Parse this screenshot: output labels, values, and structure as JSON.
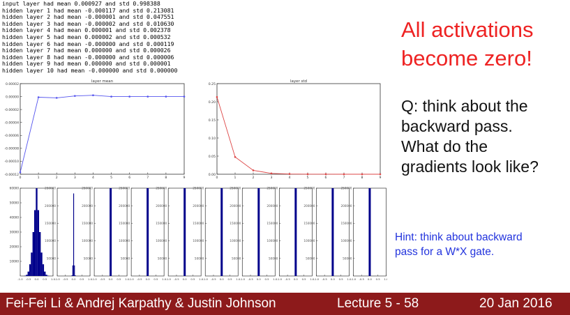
{
  "log_lines": [
    "input layer had mean 0.000927 and std 0.998388",
    "hidden layer 1 had mean -0.000117 and std 0.213081",
    "hidden layer 2 had mean -0.000001 and std 0.047551",
    "hidden layer 3 had mean -0.000002 and std 0.010630",
    "hidden layer 4 had mean 0.000001 and std 0.002378",
    "hidden layer 5 had mean 0.000002 and std 0.000532",
    "hidden layer 6 had mean -0.000000 and std 0.000119",
    "hidden layer 7 had mean 0.000000 and std 0.000026",
    "hidden layer 8 had mean -0.000000 and std 0.000006",
    "hidden layer 9 had mean 0.000000 and std 0.000001",
    "hidden layer 10 had mean -0.000000 and std 0.000000"
  ],
  "headline": [
    "All activations",
    "become zero!"
  ],
  "question": [
    "Q: think about the",
    "backward pass.",
    "What do the",
    "gradients look like?"
  ],
  "hint": [
    "Hint: think about backward",
    "pass for a W*X gate."
  ],
  "footer": {
    "authors": "Fei-Fei Li & Andrej Karpathy & Justin Johnson",
    "lecture": "Lecture 5 - 58",
    "date": "20 Jan 2016"
  },
  "colors": {
    "headline": "#ee2222",
    "hint": "#2233dd",
    "footer_bg": "#8d1a1b",
    "mean_line": "#5555ee",
    "std_line": "#dd4444",
    "hist_bar": "#00008b"
  },
  "chart_data": [
    {
      "type": "line",
      "title": "layer mean",
      "x": [
        0,
        1,
        2,
        3,
        4,
        5,
        6,
        7,
        8,
        9
      ],
      "series": [
        {
          "values": [
            -0.000117,
            -1e-06,
            -2e-06,
            1e-06,
            2e-06,
            0.0,
            0.0,
            0.0,
            0.0,
            0.0
          ]
        }
      ],
      "xlim": [
        0,
        9
      ],
      "ylim": [
        -0.00012,
        2e-05
      ],
      "xticks": [
        "0",
        "1",
        "2",
        "3",
        "4",
        "5",
        "6",
        "7",
        "8",
        "9"
      ],
      "yticks": [
        "0.00002",
        "0.00000",
        "-0.00002",
        "-0.00004",
        "-0.00006",
        "-0.00008",
        "-0.00010",
        "-0.00012"
      ],
      "ytick_values": [
        2e-05,
        0.0,
        -2e-05,
        -4e-05,
        -6e-05,
        -8e-05,
        -0.0001,
        -0.00012
      ]
    },
    {
      "type": "line",
      "title": "layer std",
      "x": [
        0,
        1,
        2,
        3,
        4,
        5,
        6,
        7,
        8,
        9
      ],
      "series": [
        {
          "values": [
            0.213081,
            0.047551,
            0.01063,
            0.002378,
            0.000532,
            0.000119,
            2.6e-05,
            6e-06,
            1e-06,
            0.0
          ]
        }
      ],
      "xlim": [
        0,
        9
      ],
      "ylim": [
        0,
        0.25
      ],
      "xticks": [
        "0",
        "1",
        "2",
        "3",
        "4",
        "5",
        "6",
        "7",
        "8",
        "9"
      ],
      "yticks": [
        "0.25",
        "0.20",
        "0.15",
        "0.10",
        "0.05",
        "0.00"
      ],
      "ytick_values": [
        0.25,
        0.2,
        0.15,
        0.1,
        0.05,
        0.0
      ]
    },
    {
      "type": "bar",
      "layer": 1,
      "categories": [
        -0.7,
        -0.6,
        -0.5,
        -0.4,
        -0.3,
        -0.2,
        -0.1,
        0.0,
        0.1,
        0.2,
        0.3,
        0.4,
        0.5,
        0.6,
        0.7
      ],
      "values": [
        200,
        800,
        3000,
        8000,
        16000,
        30000,
        45000,
        60000,
        45000,
        30000,
        16000,
        8000,
        3000,
        800,
        200
      ],
      "ylim": [
        0,
        60000
      ],
      "yticks": [
        "10000",
        "20000",
        "30000",
        "40000",
        "50000",
        "60000"
      ],
      "ytick_values": [
        10000,
        20000,
        30000,
        40000,
        50000,
        60000
      ],
      "xticks": [
        "-1.0",
        "-0.5",
        "0.0",
        "0.5",
        "1.0"
      ],
      "xtick_values": [
        -1.0,
        -0.5,
        0.0,
        0.5,
        1.0
      ]
    },
    {
      "type": "bar",
      "layer": 2,
      "categories": [
        -0.1,
        -0.05,
        0.0,
        0.05,
        0.1
      ],
      "values": [
        2000,
        30000,
        235000,
        30000,
        2000
      ],
      "ylim": [
        0,
        250000
      ],
      "yticks": [
        "50000",
        "100000",
        "150000",
        "200000",
        "250000"
      ],
      "ytick_values": [
        50000,
        100000,
        150000,
        200000,
        250000
      ],
      "xticks": [
        "-1.0",
        "-0.5",
        "0.0",
        "0.5",
        "1.0"
      ],
      "xtick_values": [
        -1.0,
        -0.5,
        0.0,
        0.5,
        1.0
      ]
    },
    {
      "type": "bar",
      "layer": 3,
      "categories": [
        0.0
      ],
      "values": [
        250000
      ],
      "ylim": [
        0,
        250000
      ],
      "yticks": [
        "50000",
        "100000",
        "150000",
        "200000",
        "250000"
      ],
      "ytick_values": [
        50000,
        100000,
        150000,
        200000,
        250000
      ],
      "xticks": [
        "-1.0",
        "-0.5",
        "0.0",
        "0.5",
        "1.0"
      ],
      "xtick_values": [
        -1.0,
        -0.5,
        0.0,
        0.5,
        1.0
      ]
    },
    {
      "type": "bar",
      "layer": 4,
      "categories": [
        0.0
      ],
      "values": [
        250000
      ],
      "ylim": [
        0,
        250000
      ],
      "yticks": [
        "50000",
        "100000",
        "150000",
        "200000",
        "250000"
      ],
      "ytick_values": [
        50000,
        100000,
        150000,
        200000,
        250000
      ],
      "xticks": [
        "-1.0",
        "-0.5",
        "0.0",
        "0.5",
        "1.0"
      ],
      "xtick_values": [
        -1.0,
        -0.5,
        0.0,
        0.5,
        1.0
      ]
    },
    {
      "type": "bar",
      "layer": 5,
      "categories": [
        0.0
      ],
      "values": [
        250000
      ],
      "ylim": [
        0,
        250000
      ],
      "yticks": [
        "50000",
        "100000",
        "150000",
        "200000",
        "250000"
      ],
      "ytick_values": [
        50000,
        100000,
        150000,
        200000,
        250000
      ],
      "xticks": [
        "-1.0",
        "-0.5",
        "0.0",
        "0.5",
        "1.0"
      ],
      "xtick_values": [
        -1.0,
        -0.5,
        0.0,
        0.5,
        1.0
      ]
    },
    {
      "type": "bar",
      "layer": 6,
      "categories": [
        0.0
      ],
      "values": [
        250000
      ],
      "ylim": [
        0,
        250000
      ],
      "yticks": [
        "50000",
        "100000",
        "150000",
        "200000",
        "250000"
      ],
      "ytick_values": [
        50000,
        100000,
        150000,
        200000,
        250000
      ],
      "xticks": [
        "-1.0",
        "-0.5",
        "0.0",
        "0.5",
        "1.0"
      ],
      "xtick_values": [
        -1.0,
        -0.5,
        0.0,
        0.5,
        1.0
      ]
    },
    {
      "type": "bar",
      "layer": 7,
      "categories": [
        0.0
      ],
      "values": [
        250000
      ],
      "ylim": [
        0,
        250000
      ],
      "yticks": [
        "50000",
        "100000",
        "150000",
        "200000",
        "250000"
      ],
      "ytick_values": [
        50000,
        100000,
        150000,
        200000,
        250000
      ],
      "xticks": [
        "-1.0",
        "-0.5",
        "0.0",
        "0.5",
        "1.0"
      ],
      "xtick_values": [
        -1.0,
        -0.5,
        0.0,
        0.5,
        1.0
      ]
    },
    {
      "type": "bar",
      "layer": 8,
      "categories": [
        0.0
      ],
      "values": [
        250000
      ],
      "ylim": [
        0,
        250000
      ],
      "yticks": [
        "50000",
        "100000",
        "150000",
        "200000",
        "250000"
      ],
      "ytick_values": [
        50000,
        100000,
        150000,
        200000,
        250000
      ],
      "xticks": [
        "-1.0",
        "-0.5",
        "0.0",
        "0.5",
        "1.0"
      ],
      "xtick_values": [
        -1.0,
        -0.5,
        0.0,
        0.5,
        1.0
      ]
    },
    {
      "type": "bar",
      "layer": 9,
      "categories": [
        0.0
      ],
      "values": [
        250000
      ],
      "ylim": [
        0,
        250000
      ],
      "yticks": [
        "50000",
        "100000",
        "150000",
        "200000",
        "250000"
      ],
      "ytick_values": [
        50000,
        100000,
        150000,
        200000,
        250000
      ],
      "xticks": [
        "-1.0",
        "-0.5",
        "0.0",
        "0.5",
        "1.0"
      ],
      "xtick_values": [
        -1.0,
        -0.5,
        0.0,
        0.5,
        1.0
      ]
    },
    {
      "type": "bar",
      "layer": 10,
      "categories": [
        0.0
      ],
      "values": [
        250000
      ],
      "ylim": [
        0,
        250000
      ],
      "yticks": [
        "50000",
        "100000",
        "150000",
        "200000",
        "250000"
      ],
      "ytick_values": [
        50000,
        100000,
        150000,
        200000,
        250000
      ],
      "xticks": [
        "-1.0",
        "-0.5",
        "0.0",
        "0.5",
        "1.0"
      ],
      "xtick_values": [
        -1.0,
        -0.5,
        0.0,
        0.5,
        1.0
      ]
    }
  ]
}
